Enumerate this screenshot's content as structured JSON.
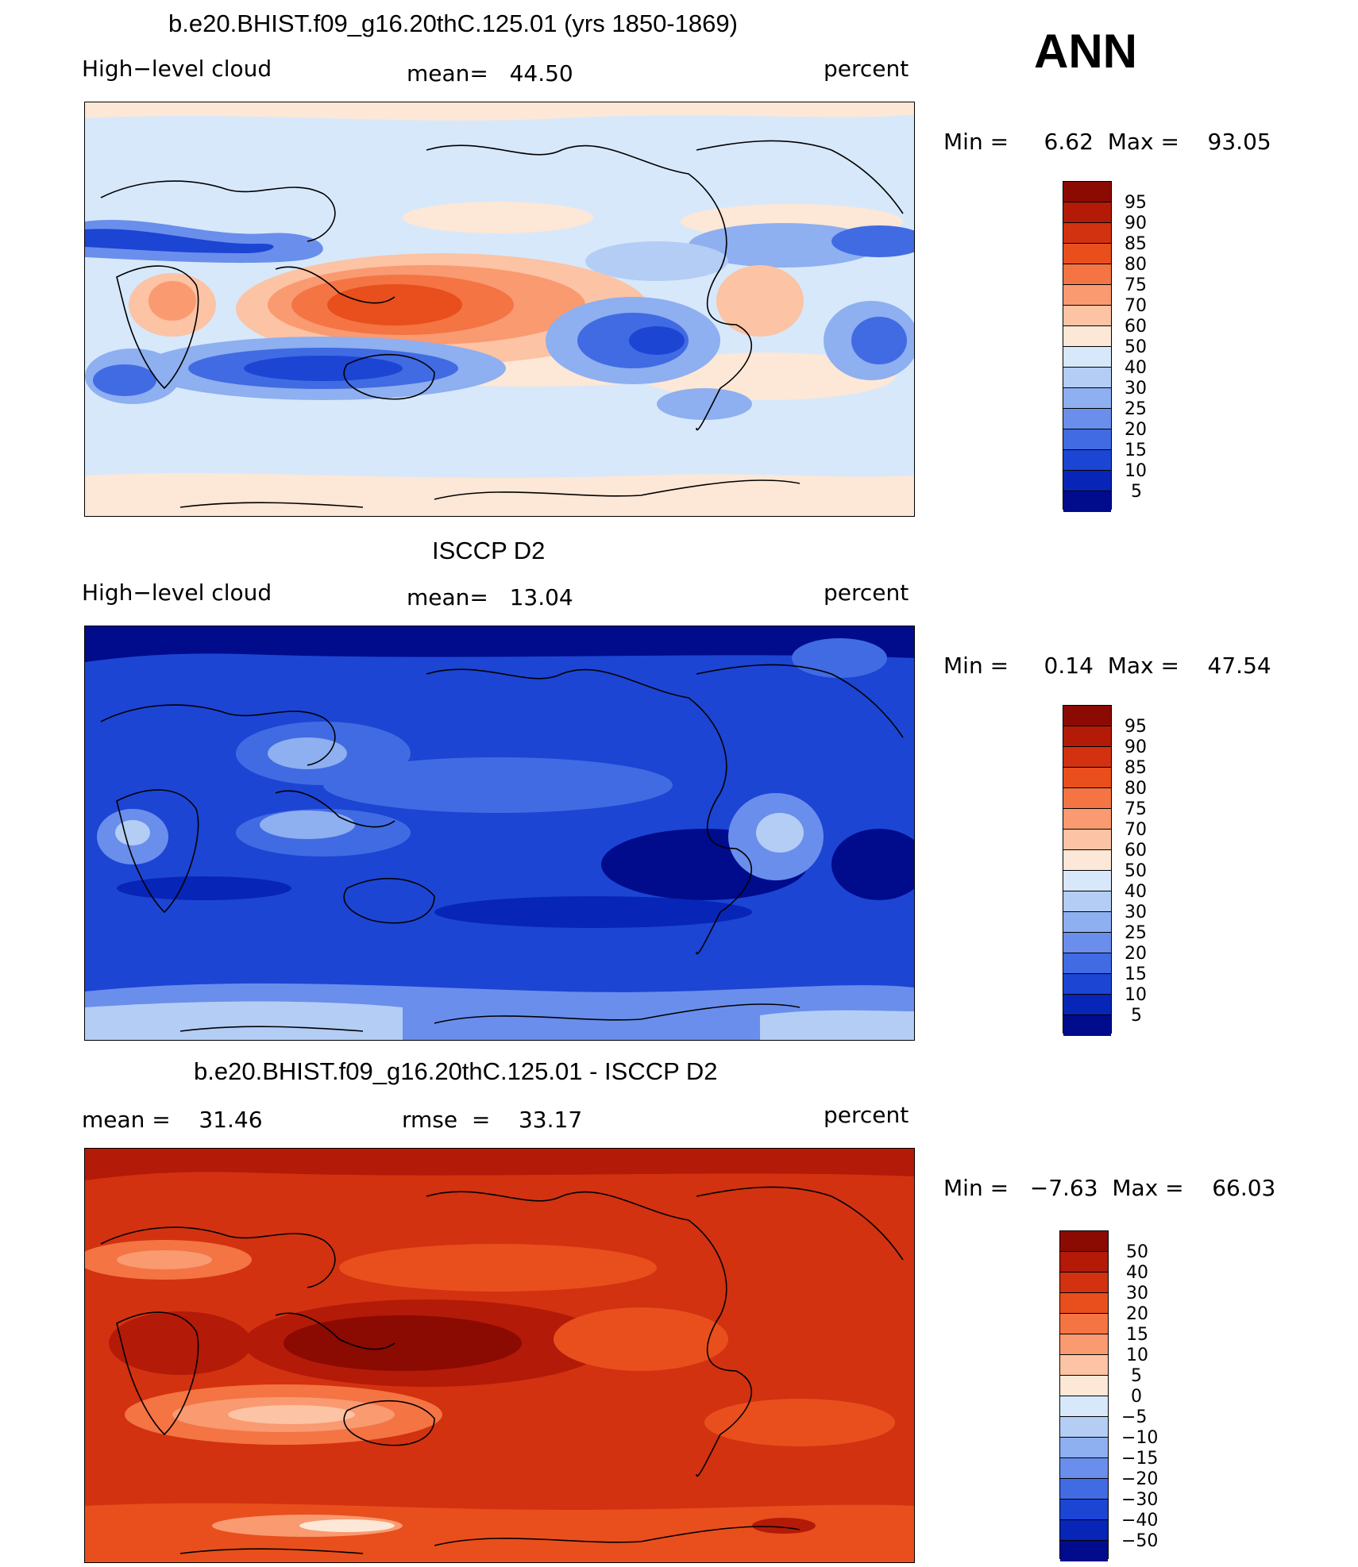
{
  "header": {
    "season": "ANN"
  },
  "panels": [
    {
      "id": "model",
      "title": "b.e20.BHIST.f09_g16.20thC.125.01 (yrs 1850-1869)",
      "left_label": "High−level cloud",
      "center_label": "mean=   44.50",
      "units": "percent",
      "minmax": "Min =     6.62  Max =    93.05",
      "colorbar_labels": [
        "95",
        "90",
        "85",
        "80",
        "75",
        "70",
        "60",
        "50",
        "40",
        "30",
        "25",
        "20",
        "15",
        "10",
        "5"
      ],
      "colorbar_colors": [
        "#8b0a02",
        "#b31a08",
        "#d23210",
        "#e84f1d",
        "#f47443",
        "#f99a71",
        "#fcc3a4",
        "#fde7d6",
        "#d7e8fb",
        "#b4cdf5",
        "#8eaff0",
        "#6a8eeb",
        "#416be2",
        "#1c45d4",
        "#0725b6",
        "#000c8c"
      ]
    },
    {
      "id": "obs",
      "title": "ISCCP D2",
      "left_label": "High−level cloud",
      "center_label": "mean=   13.04",
      "units": "percent",
      "minmax": "Min =     0.14  Max =    47.54",
      "colorbar_labels": [
        "95",
        "90",
        "85",
        "80",
        "75",
        "70",
        "60",
        "50",
        "40",
        "30",
        "25",
        "20",
        "15",
        "10",
        "5"
      ],
      "colorbar_colors": [
        "#8b0a02",
        "#b31a08",
        "#d23210",
        "#e84f1d",
        "#f47443",
        "#f99a71",
        "#fcc3a4",
        "#fde7d6",
        "#d7e8fb",
        "#b4cdf5",
        "#8eaff0",
        "#6a8eeb",
        "#416be2",
        "#1c45d4",
        "#0725b6",
        "#000c8c"
      ]
    },
    {
      "id": "diff",
      "title": "b.e20.BHIST.f09_g16.20thC.125.01 - ISCCP D2",
      "left_label": "mean =    31.46",
      "center_label": "rmse  =    33.17",
      "units": "percent",
      "minmax": "Min =   −7.63  Max =    66.03",
      "colorbar_labels": [
        "50",
        "40",
        "30",
        "20",
        "15",
        "10",
        "5",
        "0",
        "−5",
        "−10",
        "−15",
        "−20",
        "−30",
        "−40",
        "−50"
      ],
      "colorbar_colors": [
        "#8b0a02",
        "#b31a08",
        "#d23210",
        "#e84f1d",
        "#f47443",
        "#f99a71",
        "#fcc3a4",
        "#fde7d6",
        "#d7e8fb",
        "#b4cdf5",
        "#8eaff0",
        "#6a8eeb",
        "#416be2",
        "#1c45d4",
        "#0725b6",
        "#000c8c"
      ]
    }
  ]
}
